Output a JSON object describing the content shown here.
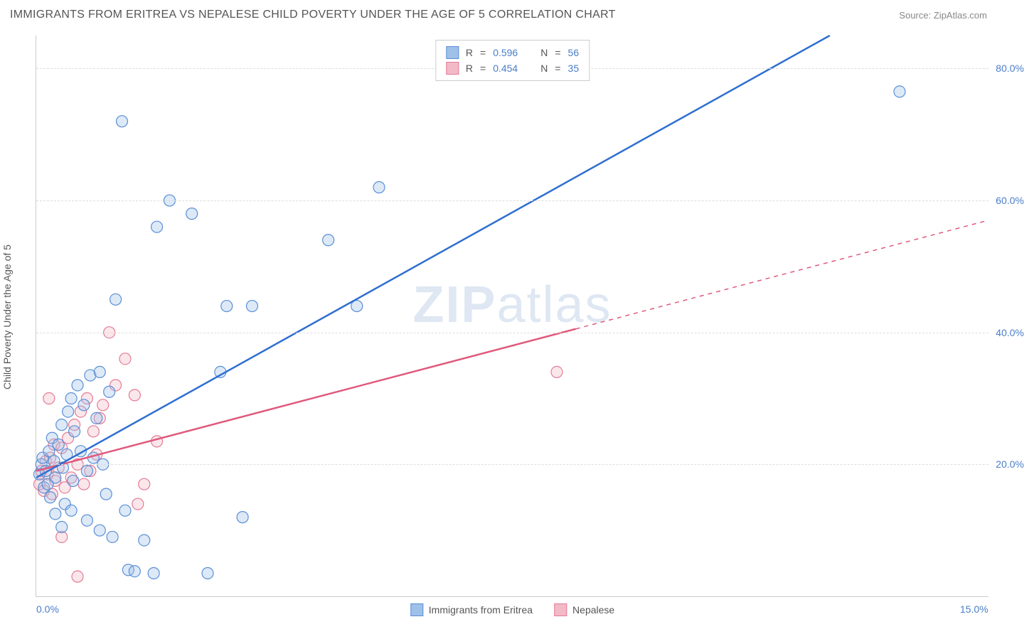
{
  "title": "IMMIGRANTS FROM ERITREA VS NEPALESE CHILD POVERTY UNDER THE AGE OF 5 CORRELATION CHART",
  "source_label": "Source:",
  "source_name": "ZipAtlas.com",
  "watermark_bold": "ZIP",
  "watermark_light": "atlas",
  "yaxis_title": "Child Poverty Under the Age of 5",
  "chart": {
    "type": "scatter",
    "background_color": "#ffffff",
    "grid_color": "#dddddd",
    "axis_color": "#cccccc",
    "tick_label_color": "#4a7ec9",
    "tick_fontsize": 14,
    "title_color": "#555555",
    "title_fontsize": 16,
    "xlim": [
      0.0,
      15.0
    ],
    "ylim": [
      0.0,
      85.0
    ],
    "xticks": [
      {
        "v": 0.0,
        "label": "0.0%"
      },
      {
        "v": 15.0,
        "label": "15.0%"
      }
    ],
    "yticks": [
      {
        "v": 20.0,
        "label": "20.0%"
      },
      {
        "v": 40.0,
        "label": "40.0%"
      },
      {
        "v": 60.0,
        "label": "60.0%"
      },
      {
        "v": 80.0,
        "label": "80.0%"
      }
    ],
    "marker_radius": 8,
    "marker_fill_opacity": 0.35,
    "marker_stroke_width": 1.2,
    "trend_line_width": 2.5
  },
  "legend_top": {
    "r_label": "R",
    "n_label": "N",
    "eq": "=",
    "rows": [
      {
        "series": "a",
        "R": "0.596",
        "N": "56"
      },
      {
        "series": "b",
        "R": "0.454",
        "N": "35"
      }
    ]
  },
  "series": {
    "a": {
      "label": "Immigrants from Eritrea",
      "color_fill": "#9fc0e8",
      "color_stroke": "#5a8fd6",
      "line_color": "#2f6fd0",
      "line_dash": "none",
      "trend": {
        "x1": 0.0,
        "y1": 18.0,
        "x2": 12.5,
        "y2": 85.0
      },
      "points": [
        [
          0.05,
          18.5
        ],
        [
          0.08,
          20.0
        ],
        [
          0.1,
          21.0
        ],
        [
          0.12,
          16.5
        ],
        [
          0.15,
          19.0
        ],
        [
          0.18,
          17.0
        ],
        [
          0.2,
          22.0
        ],
        [
          0.22,
          15.0
        ],
        [
          0.25,
          24.0
        ],
        [
          0.28,
          20.5
        ],
        [
          0.3,
          18.0
        ],
        [
          0.35,
          23.0
        ],
        [
          0.4,
          26.0
        ],
        [
          0.42,
          19.5
        ],
        [
          0.45,
          14.0
        ],
        [
          0.48,
          21.5
        ],
        [
          0.5,
          28.0
        ],
        [
          0.55,
          30.0
        ],
        [
          0.58,
          17.5
        ],
        [
          0.6,
          25.0
        ],
        [
          0.65,
          32.0
        ],
        [
          0.7,
          22.0
        ],
        [
          0.75,
          29.0
        ],
        [
          0.8,
          19.0
        ],
        [
          0.85,
          33.5
        ],
        [
          0.9,
          21.0
        ],
        [
          0.95,
          27.0
        ],
        [
          1.0,
          34.0
        ],
        [
          1.05,
          20.0
        ],
        [
          1.1,
          15.5
        ],
        [
          1.15,
          31.0
        ],
        [
          1.25,
          45.0
        ],
        [
          1.4,
          13.0
        ],
        [
          1.45,
          4.0
        ],
        [
          1.55,
          3.8
        ],
        [
          1.7,
          8.5
        ],
        [
          1.85,
          3.5
        ],
        [
          1.9,
          56.0
        ],
        [
          2.1,
          60.0
        ],
        [
          2.45,
          58.0
        ],
        [
          2.7,
          3.5
        ],
        [
          2.9,
          34.0
        ],
        [
          3.0,
          44.0
        ],
        [
          3.25,
          12.0
        ],
        [
          3.4,
          44.0
        ],
        [
          4.6,
          54.0
        ],
        [
          5.05,
          44.0
        ],
        [
          5.4,
          62.0
        ],
        [
          1.35,
          72.0
        ],
        [
          13.6,
          76.5
        ],
        [
          0.3,
          12.5
        ],
        [
          0.55,
          13.0
        ],
        [
          0.8,
          11.5
        ],
        [
          1.0,
          10.0
        ],
        [
          1.2,
          9.0
        ],
        [
          0.4,
          10.5
        ]
      ]
    },
    "b": {
      "label": "Nepalese",
      "color_fill": "#f2b9c7",
      "color_stroke": "#e57a95",
      "line_color": "#e05a7d",
      "line_dash": "6,6",
      "trend_solid_until_x": 8.5,
      "trend": {
        "x1": 0.0,
        "y1": 19.0,
        "x2": 15.0,
        "y2": 57.0
      },
      "points": [
        [
          0.05,
          17.0
        ],
        [
          0.08,
          19.0
        ],
        [
          0.12,
          16.0
        ],
        [
          0.15,
          20.5
        ],
        [
          0.18,
          18.5
        ],
        [
          0.22,
          21.0
        ],
        [
          0.25,
          15.5
        ],
        [
          0.28,
          23.0
        ],
        [
          0.3,
          17.5
        ],
        [
          0.35,
          19.5
        ],
        [
          0.4,
          22.5
        ],
        [
          0.45,
          16.5
        ],
        [
          0.5,
          24.0
        ],
        [
          0.55,
          18.0
        ],
        [
          0.6,
          26.0
        ],
        [
          0.65,
          20.0
        ],
        [
          0.7,
          28.0
        ],
        [
          0.75,
          17.0
        ],
        [
          0.8,
          30.0
        ],
        [
          0.85,
          19.0
        ],
        [
          0.9,
          25.0
        ],
        [
          0.95,
          21.5
        ],
        [
          1.0,
          27.0
        ],
        [
          1.05,
          29.0
        ],
        [
          1.15,
          40.0
        ],
        [
          1.25,
          32.0
        ],
        [
          1.4,
          36.0
        ],
        [
          1.55,
          30.5
        ],
        [
          1.6,
          14.0
        ],
        [
          1.7,
          17.0
        ],
        [
          1.9,
          23.5
        ],
        [
          0.4,
          9.0
        ],
        [
          0.65,
          3.0
        ],
        [
          0.2,
          30.0
        ],
        [
          8.2,
          34.0
        ]
      ]
    }
  },
  "legend_bottom": [
    {
      "series": "a"
    },
    {
      "series": "b"
    }
  ]
}
